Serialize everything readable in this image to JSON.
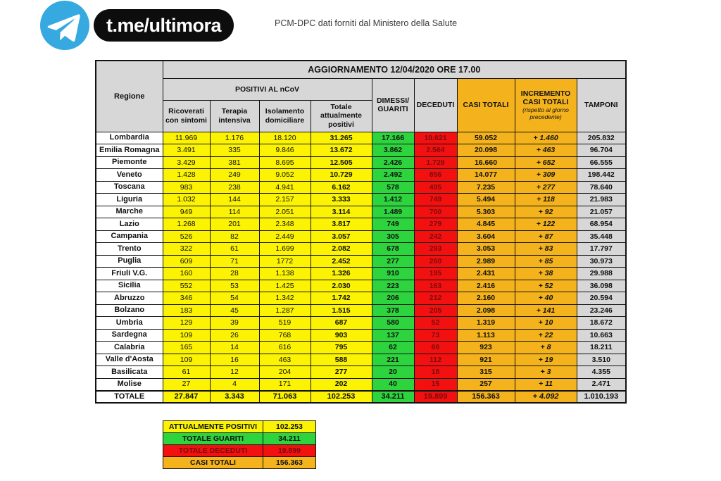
{
  "header": {
    "channel": "t.me/ultimora",
    "source_note": "PCM-DPC dati forniti dal Ministero della Salute"
  },
  "colors": {
    "yellow": "#fbf303",
    "green": "#2ed43e",
    "red": "#f21010",
    "orange": "#f4b31c",
    "header_gray": "#d7d7d7",
    "telegram_blue": "#36a9e0",
    "pill_black": "#0d0d0d"
  },
  "table": {
    "title": "AGGIORNAMENTO 12/04/2020 ORE 17.00",
    "region_header": "Regione",
    "group_positivi": "POSITIVI AL nCoV",
    "col_ricoverati": "Ricoverati con sintomi",
    "col_terapia": "Terapia intensiva",
    "col_isolamento": "Isolamento domiciliare",
    "col_totale_positivi": "Totale attualmente positivi",
    "col_dimessi": "DIMESSI/ GUARITI",
    "col_deceduti": "DECEDUTI",
    "col_casi_totali": "CASI TOTALI",
    "col_incremento": "INCREMENTO CASI TOTALI",
    "col_incremento_note": "(rispetto al giorno precedente)",
    "col_tamponi": "TAMPONI"
  },
  "chart_data": {
    "type": "table",
    "title": "AGGIORNAMENTO 12/04/2020 ORE 17.00",
    "columns": [
      "Regione",
      "Ricoverati con sintomi",
      "Terapia intensiva",
      "Isolamento domiciliare",
      "Totale attualmente positivi",
      "DIMESSI/ GUARITI",
      "DECEDUTI",
      "CASI TOTALI",
      "INCREMENTO CASI TOTALI (rispetto al giorno precedente)",
      "TAMPONI"
    ],
    "rows": [
      [
        "Lombardia",
        "11.969",
        "1.176",
        "18.120",
        "31.265",
        "17.166",
        "10.621",
        "59.052",
        "+ 1.460",
        "205.832"
      ],
      [
        "Emilia Romagna",
        "3.491",
        "335",
        "9.846",
        "13.672",
        "3.862",
        "2.564",
        "20.098",
        "+ 463",
        "96.704"
      ],
      [
        "Piemonte",
        "3.429",
        "381",
        "8.695",
        "12.505",
        "2.426",
        "1.729",
        "16.660",
        "+ 652",
        "66.555"
      ],
      [
        "Veneto",
        "1.428",
        "249",
        "9.052",
        "10.729",
        "2.492",
        "856",
        "14.077",
        "+ 309",
        "198.442"
      ],
      [
        "Toscana",
        "983",
        "238",
        "4.941",
        "6.162",
        "578",
        "495",
        "7.235",
        "+ 277",
        "78.640"
      ],
      [
        "Liguria",
        "1.032",
        "144",
        "2.157",
        "3.333",
        "1.412",
        "749",
        "5.494",
        "+ 118",
        "21.983"
      ],
      [
        "Marche",
        "949",
        "114",
        "2.051",
        "3.114",
        "1.489",
        "700",
        "5.303",
        "+ 92",
        "21.057"
      ],
      [
        "Lazio",
        "1.268",
        "201",
        "2.348",
        "3.817",
        "749",
        "279",
        "4.845",
        "+ 122",
        "68.954"
      ],
      [
        "Campania",
        "526",
        "82",
        "2.449",
        "3.057",
        "305",
        "242",
        "3.604",
        "+ 87",
        "35.448"
      ],
      [
        "Trento",
        "322",
        "61",
        "1.699",
        "2.082",
        "678",
        "293",
        "3.053",
        "+ 83",
        "17.797"
      ],
      [
        "Puglia",
        "609",
        "71",
        "1772",
        "2.452",
        "277",
        "260",
        "2.989",
        "+ 85",
        "30.973"
      ],
      [
        "Friuli V.G.",
        "160",
        "28",
        "1.138",
        "1.326",
        "910",
        "195",
        "2.431",
        "+ 38",
        "29.988"
      ],
      [
        "Sicilia",
        "552",
        "53",
        "1.425",
        "2.030",
        "223",
        "163",
        "2.416",
        "+ 52",
        "36.098"
      ],
      [
        "Abruzzo",
        "346",
        "54",
        "1.342",
        "1.742",
        "206",
        "212",
        "2.160",
        "+ 40",
        "20.594"
      ],
      [
        "Bolzano",
        "183",
        "45",
        "1.287",
        "1.515",
        "378",
        "205",
        "2.098",
        "+ 141",
        "23.246"
      ],
      [
        "Umbria",
        "129",
        "39",
        "519",
        "687",
        "580",
        "52",
        "1.319",
        "+ 10",
        "18.672"
      ],
      [
        "Sardegna",
        "109",
        "26",
        "768",
        "903",
        "137",
        "73",
        "1.113",
        "+ 22",
        "10.663"
      ],
      [
        "Calabria",
        "165",
        "14",
        "616",
        "795",
        "62",
        "66",
        "923",
        "+ 8",
        "18.211"
      ],
      [
        "Valle d'Aosta",
        "109",
        "16",
        "463",
        "588",
        "221",
        "112",
        "921",
        "+ 19",
        "3.510"
      ],
      [
        "Basilicata",
        "61",
        "12",
        "204",
        "277",
        "20",
        "18",
        "315",
        "+ 3",
        "4.355"
      ],
      [
        "Molise",
        "27",
        "4",
        "171",
        "202",
        "40",
        "15",
        "257",
        "+ 11",
        "2.471"
      ]
    ],
    "totale": [
      "TOTALE",
      "27.847",
      "3.343",
      "71.063",
      "102.253",
      "34.211",
      "19.899",
      "156.363",
      "+ 4.092",
      "1.010.193"
    ]
  },
  "summary": {
    "rows": [
      {
        "label": "ATTUALMENTE POSITIVI",
        "value": "102.253",
        "color": "yellow"
      },
      {
        "label": "TOTALE GUARITI",
        "value": "34.211",
        "color": "green"
      },
      {
        "label": "TOTALE DECEDUTI",
        "value": "19.899",
        "color": "red"
      },
      {
        "label": "CASI TOTALI",
        "value": "156.363",
        "color": "orange"
      }
    ]
  }
}
